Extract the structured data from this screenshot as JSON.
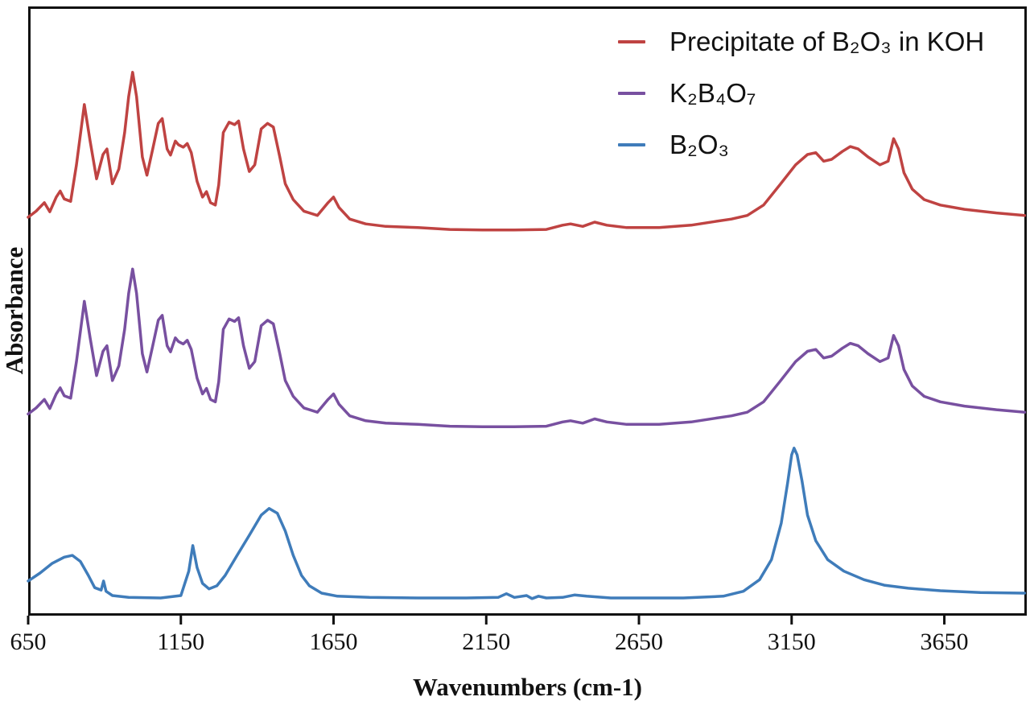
{
  "figure": {
    "kind": "IR absorbance spectra, three vertically offset traces"
  },
  "chart_data": {
    "type": "line",
    "title": "",
    "xlabel": "Wavenumbers (cm-1)",
    "ylabel": "Absorbance",
    "x_range": [
      650,
      3920
    ],
    "x_ticks": [
      650,
      1150,
      1650,
      2150,
      2650,
      3150,
      3650
    ],
    "y_axis": "arbitrary absorbance units (0-100 of plot height), no tick labels shown; traces offset vertically for clarity",
    "grid": false,
    "legend_position": "top-right",
    "axis_color": "#111111",
    "series": [
      {
        "id": "precipitate-b2o3-koh",
        "label": "Precipitate of B₂O₃ in KOH",
        "color": "#bf4342",
        "points": [
          [
            650,
            65.4
          ],
          [
            676,
            66.4
          ],
          [
            703,
            67.8
          ],
          [
            721,
            66.3
          ],
          [
            742,
            68.7
          ],
          [
            755,
            69.7
          ],
          [
            768,
            68.4
          ],
          [
            789,
            68.0
          ],
          [
            808,
            74.0
          ],
          [
            834,
            83.9
          ],
          [
            853,
            77.9
          ],
          [
            874,
            71.7
          ],
          [
            895,
            75.7
          ],
          [
            908,
            76.6
          ],
          [
            926,
            70.9
          ],
          [
            947,
            73.3
          ],
          [
            966,
            79.3
          ],
          [
            979,
            85.2
          ],
          [
            992,
            89.2
          ],
          [
            1005,
            85.2
          ],
          [
            1024,
            75.3
          ],
          [
            1039,
            72.3
          ],
          [
            1058,
            76.6
          ],
          [
            1076,
            80.8
          ],
          [
            1089,
            81.6
          ],
          [
            1105,
            76.6
          ],
          [
            1116,
            75.6
          ],
          [
            1132,
            77.9
          ],
          [
            1142,
            77.3
          ],
          [
            1158,
            76.9
          ],
          [
            1171,
            77.5
          ],
          [
            1184,
            76.0
          ],
          [
            1203,
            71.3
          ],
          [
            1221,
            68.7
          ],
          [
            1234,
            69.6
          ],
          [
            1247,
            67.8
          ],
          [
            1263,
            67.4
          ],
          [
            1274,
            70.7
          ],
          [
            1289,
            79.3
          ],
          [
            1308,
            81.0
          ],
          [
            1326,
            80.6
          ],
          [
            1339,
            81.2
          ],
          [
            1355,
            76.6
          ],
          [
            1374,
            72.9
          ],
          [
            1392,
            74.0
          ],
          [
            1413,
            79.9
          ],
          [
            1434,
            80.8
          ],
          [
            1453,
            80.2
          ],
          [
            1474,
            75.3
          ],
          [
            1492,
            70.9
          ],
          [
            1518,
            68.3
          ],
          [
            1553,
            66.4
          ],
          [
            1597,
            65.7
          ],
          [
            1632,
            67.8
          ],
          [
            1650,
            68.7
          ],
          [
            1668,
            67.0
          ],
          [
            1703,
            65.1
          ],
          [
            1755,
            64.3
          ],
          [
            1821,
            63.9
          ],
          [
            1926,
            63.7
          ],
          [
            2031,
            63.4
          ],
          [
            2137,
            63.3
          ],
          [
            2242,
            63.3
          ],
          [
            2347,
            63.4
          ],
          [
            2400,
            64.1
          ],
          [
            2426,
            64.3
          ],
          [
            2466,
            63.9
          ],
          [
            2505,
            64.6
          ],
          [
            2545,
            64.1
          ],
          [
            2610,
            63.7
          ],
          [
            2716,
            63.7
          ],
          [
            2821,
            64.1
          ],
          [
            2900,
            64.7
          ],
          [
            2953,
            65.1
          ],
          [
            3005,
            65.7
          ],
          [
            3058,
            67.4
          ],
          [
            3111,
            70.7
          ],
          [
            3163,
            74.0
          ],
          [
            3202,
            75.7
          ],
          [
            3229,
            76.0
          ],
          [
            3255,
            74.6
          ],
          [
            3281,
            74.9
          ],
          [
            3316,
            76.2
          ],
          [
            3342,
            77.0
          ],
          [
            3368,
            76.6
          ],
          [
            3400,
            75.3
          ],
          [
            3439,
            74.0
          ],
          [
            3466,
            74.6
          ],
          [
            3484,
            78.3
          ],
          [
            3500,
            76.6
          ],
          [
            3518,
            72.7
          ],
          [
            3545,
            70.0
          ],
          [
            3584,
            68.3
          ],
          [
            3637,
            67.4
          ],
          [
            3716,
            66.7
          ],
          [
            3821,
            66.1
          ],
          [
            3913,
            65.7
          ]
        ]
      },
      {
        "id": "k2b4o7",
        "label": "K₂B₄O₇",
        "color": "#7850a0",
        "points": [
          [
            650,
            33.1
          ],
          [
            676,
            34.1
          ],
          [
            703,
            35.5
          ],
          [
            721,
            34.0
          ],
          [
            742,
            36.4
          ],
          [
            755,
            37.4
          ],
          [
            768,
            36.1
          ],
          [
            789,
            35.7
          ],
          [
            808,
            41.7
          ],
          [
            834,
            51.6
          ],
          [
            853,
            45.6
          ],
          [
            874,
            39.4
          ],
          [
            895,
            43.4
          ],
          [
            908,
            44.3
          ],
          [
            926,
            38.6
          ],
          [
            947,
            41.0
          ],
          [
            966,
            47.0
          ],
          [
            979,
            52.9
          ],
          [
            992,
            56.9
          ],
          [
            1005,
            52.9
          ],
          [
            1024,
            43.0
          ],
          [
            1039,
            40.0
          ],
          [
            1058,
            44.3
          ],
          [
            1076,
            48.5
          ],
          [
            1089,
            49.3
          ],
          [
            1105,
            44.3
          ],
          [
            1116,
            43.3
          ],
          [
            1132,
            45.6
          ],
          [
            1142,
            45.0
          ],
          [
            1158,
            44.6
          ],
          [
            1171,
            45.2
          ],
          [
            1184,
            43.7
          ],
          [
            1203,
            39.0
          ],
          [
            1221,
            36.4
          ],
          [
            1234,
            37.3
          ],
          [
            1247,
            35.5
          ],
          [
            1263,
            35.1
          ],
          [
            1274,
            38.4
          ],
          [
            1289,
            47.0
          ],
          [
            1308,
            48.7
          ],
          [
            1326,
            48.3
          ],
          [
            1339,
            48.9
          ],
          [
            1355,
            44.3
          ],
          [
            1374,
            40.6
          ],
          [
            1392,
            41.7
          ],
          [
            1413,
            47.6
          ],
          [
            1434,
            48.5
          ],
          [
            1453,
            47.9
          ],
          [
            1474,
            43.0
          ],
          [
            1492,
            38.6
          ],
          [
            1518,
            36.0
          ],
          [
            1553,
            34.1
          ],
          [
            1597,
            33.4
          ],
          [
            1632,
            35.5
          ],
          [
            1650,
            36.4
          ],
          [
            1668,
            34.7
          ],
          [
            1703,
            32.8
          ],
          [
            1755,
            32.0
          ],
          [
            1821,
            31.6
          ],
          [
            1926,
            31.4
          ],
          [
            2031,
            31.1
          ],
          [
            2137,
            31.0
          ],
          [
            2242,
            31.0
          ],
          [
            2347,
            31.1
          ],
          [
            2400,
            31.8
          ],
          [
            2426,
            32.0
          ],
          [
            2466,
            31.6
          ],
          [
            2505,
            32.3
          ],
          [
            2545,
            31.8
          ],
          [
            2610,
            31.4
          ],
          [
            2716,
            31.4
          ],
          [
            2821,
            31.8
          ],
          [
            2900,
            32.4
          ],
          [
            2953,
            32.8
          ],
          [
            3005,
            33.4
          ],
          [
            3058,
            35.1
          ],
          [
            3111,
            38.4
          ],
          [
            3163,
            41.7
          ],
          [
            3202,
            43.4
          ],
          [
            3229,
            43.7
          ],
          [
            3255,
            42.3
          ],
          [
            3281,
            42.6
          ],
          [
            3316,
            43.9
          ],
          [
            3342,
            44.7
          ],
          [
            3368,
            44.3
          ],
          [
            3400,
            43.0
          ],
          [
            3439,
            41.7
          ],
          [
            3466,
            42.3
          ],
          [
            3484,
            46.0
          ],
          [
            3500,
            44.3
          ],
          [
            3518,
            40.4
          ],
          [
            3545,
            37.7
          ],
          [
            3584,
            36.0
          ],
          [
            3637,
            35.1
          ],
          [
            3716,
            34.4
          ],
          [
            3821,
            33.8
          ],
          [
            3913,
            33.4
          ]
        ]
      },
      {
        "id": "b2o3",
        "label": "B₂O₃",
        "color": "#3f7cba",
        "points": [
          [
            650,
            5.7
          ],
          [
            689,
            7.0
          ],
          [
            729,
            8.6
          ],
          [
            768,
            9.6
          ],
          [
            795,
            9.9
          ],
          [
            821,
            8.9
          ],
          [
            847,
            6.6
          ],
          [
            868,
            4.6
          ],
          [
            889,
            4.2
          ],
          [
            897,
            5.7
          ],
          [
            905,
            4.0
          ],
          [
            926,
            3.3
          ],
          [
            979,
            3.0
          ],
          [
            1084,
            2.9
          ],
          [
            1150,
            3.3
          ],
          [
            1176,
            7.3
          ],
          [
            1189,
            11.5
          ],
          [
            1203,
            7.9
          ],
          [
            1221,
            5.3
          ],
          [
            1242,
            4.4
          ],
          [
            1268,
            4.9
          ],
          [
            1295,
            6.6
          ],
          [
            1334,
            9.9
          ],
          [
            1374,
            13.2
          ],
          [
            1413,
            16.5
          ],
          [
            1439,
            17.6
          ],
          [
            1466,
            16.8
          ],
          [
            1492,
            13.9
          ],
          [
            1518,
            9.9
          ],
          [
            1545,
            6.6
          ],
          [
            1571,
            4.9
          ],
          [
            1611,
            3.7
          ],
          [
            1663,
            3.2
          ],
          [
            1768,
            3.0
          ],
          [
            1926,
            2.9
          ],
          [
            2084,
            2.9
          ],
          [
            2189,
            3.0
          ],
          [
            2216,
            3.6
          ],
          [
            2242,
            3.0
          ],
          [
            2282,
            3.3
          ],
          [
            2300,
            2.8
          ],
          [
            2321,
            3.2
          ],
          [
            2347,
            2.9
          ],
          [
            2400,
            3.0
          ],
          [
            2439,
            3.4
          ],
          [
            2479,
            3.2
          ],
          [
            2558,
            2.9
          ],
          [
            2663,
            2.9
          ],
          [
            2795,
            2.9
          ],
          [
            2926,
            3.2
          ],
          [
            2992,
            4.0
          ],
          [
            3045,
            5.9
          ],
          [
            3084,
            9.2
          ],
          [
            3116,
            15.2
          ],
          [
            3137,
            21.8
          ],
          [
            3150,
            26.4
          ],
          [
            3158,
            27.5
          ],
          [
            3168,
            26.4
          ],
          [
            3184,
            22.1
          ],
          [
            3202,
            16.5
          ],
          [
            3229,
            12.3
          ],
          [
            3268,
            9.2
          ],
          [
            3321,
            7.3
          ],
          [
            3387,
            5.9
          ],
          [
            3453,
            5.0
          ],
          [
            3532,
            4.5
          ],
          [
            3637,
            4.1
          ],
          [
            3768,
            3.8
          ],
          [
            3913,
            3.7
          ]
        ]
      }
    ]
  }
}
